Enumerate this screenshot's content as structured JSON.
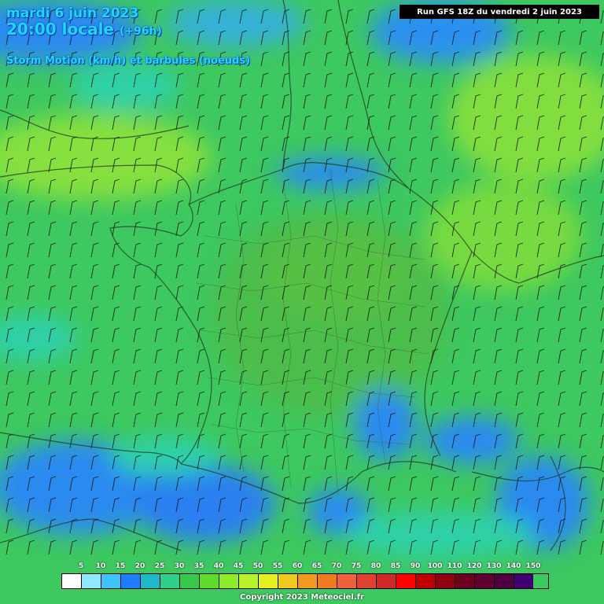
{
  "header": {
    "title_line1": "mardi 6 juin 2023",
    "title_line2": "20:00 locale",
    "title_lead": "(+96h)",
    "subtitle": "Storm Motion (km/h) et barbules (noeuds)",
    "run_info": "Run GFS 18Z du vendredi 2 juin 2023"
  },
  "legend": {
    "labels": [
      "5",
      "10",
      "15",
      "20",
      "25",
      "30",
      "35",
      "40",
      "45",
      "50",
      "55",
      "60",
      "65",
      "70",
      "75",
      "80",
      "85",
      "90",
      "100",
      "110",
      "120",
      "130",
      "140",
      "150"
    ],
    "colors": [
      "#ffffff",
      "#8fe8ff",
      "#3ec3ff",
      "#1e7dff",
      "#1fb8c8",
      "#2fd08a",
      "#35c84a",
      "#5fdc2a",
      "#8cec2a",
      "#b8f22a",
      "#e6f020",
      "#f0c820",
      "#f09a20",
      "#f07a20",
      "#f0603a",
      "#e04030",
      "#d02828",
      "#ff0000",
      "#c00000",
      "#900010",
      "#700020",
      "#600030",
      "#500040",
      "#400070"
    ]
  },
  "copyright": "Copyright 2023 Meteociel.fr",
  "colors": {
    "base_green": "#3ec860",
    "light_green": "#70dc2e",
    "blue": "#2a8af0",
    "cyan": "#2fd0a8",
    "title_cyan": "#1ed6ff"
  }
}
